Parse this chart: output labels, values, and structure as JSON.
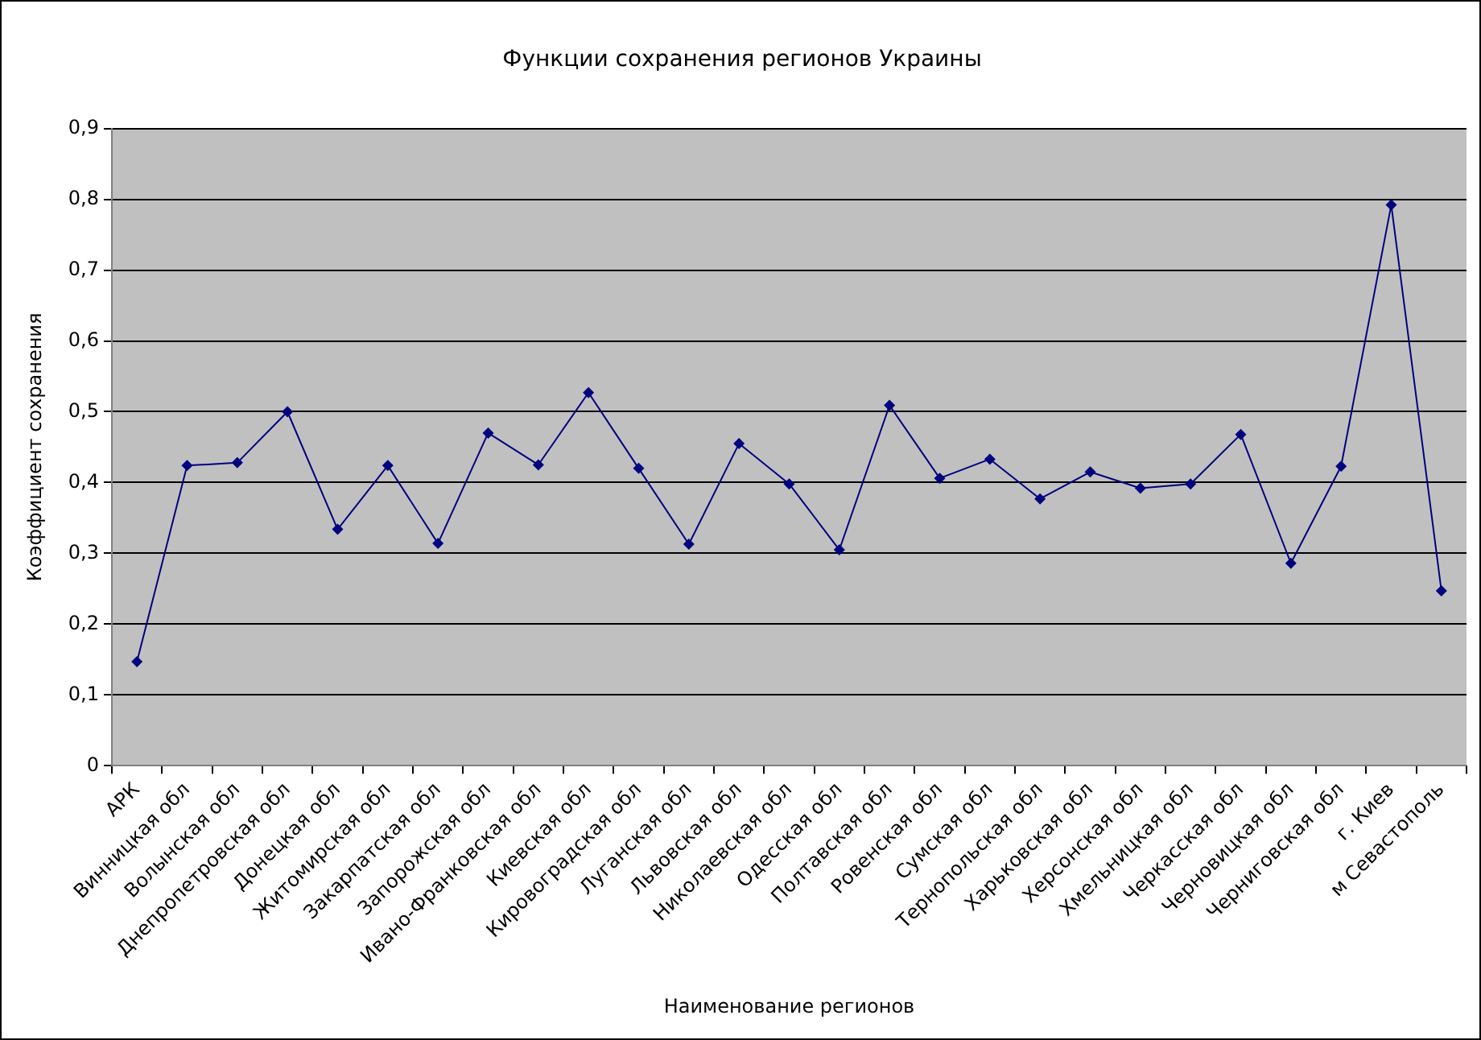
{
  "chart_data": {
    "type": "line",
    "title": "Функции сохранения регионов Украины",
    "xlabel": "Наименование регионов",
    "ylabel": "Коэффициент сохранения",
    "categories": [
      "АРК",
      "Винницкая обл",
      "Волынская обл",
      "Днепропетровская обл",
      "Донецкая обл",
      "Житомирская обл",
      "Закарпатская обл",
      "Запорожская обл",
      "Ивано-Франковская обл",
      "Киевская обл",
      "Кировоградская обл",
      "Луганская обл",
      "Львовская обл",
      "Николаевская обл",
      "Одесская обл",
      "Полтавская обл",
      "Ровенская обл",
      "Сумская обл",
      "Тернопольская обл",
      "Харьковская обл",
      "Херсонская обл",
      "Хмельницкая обл",
      "Черкасская обл",
      "Черновицкая обл",
      "Черниговская обл",
      "г. Киев",
      "м Севастополь"
    ],
    "series": [
      {
        "color": "#000080",
        "values": [
          0.147,
          0.424,
          0.428,
          0.5,
          0.334,
          0.424,
          0.314,
          0.47,
          0.425,
          0.527,
          0.42,
          0.313,
          0.455,
          0.398,
          0.305,
          0.509,
          0.406,
          0.433,
          0.377,
          0.415,
          0.392,
          0.398,
          0.468,
          0.286,
          0.423,
          0.792,
          0.247
        ]
      }
    ],
    "ylim": [
      0,
      0.9
    ],
    "yticks": [
      0,
      {
        "value": 0.1,
        "label": "0,1"
      },
      {
        "value": 0.2,
        "label": "0,2"
      },
      {
        "value": 0.3,
        "label": "0,3"
      },
      {
        "value": 0.4,
        "label": "0,4"
      },
      {
        "value": 0.5,
        "label": "0,5"
      },
      {
        "value": 0.6,
        "label": "0,6"
      },
      {
        "value": 0.7,
        "label": "0,7"
      },
      {
        "value": 0.8,
        "label": "0,8"
      },
      {
        "value": 0.9,
        "label": "0,9"
      }
    ],
    "grid": "y",
    "legend": false,
    "marker": "diamond",
    "line_style": "solid"
  }
}
